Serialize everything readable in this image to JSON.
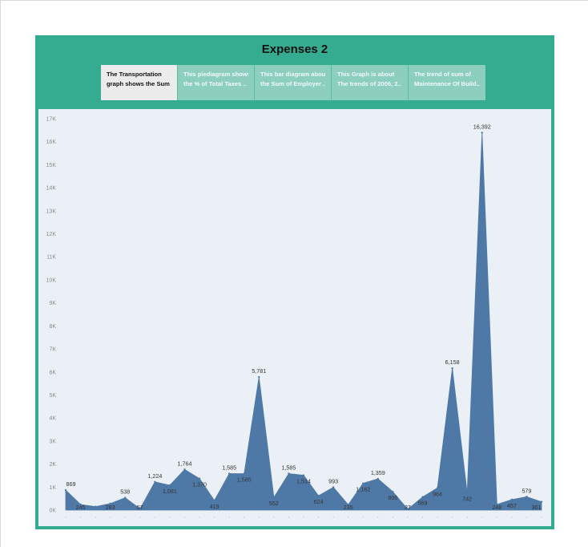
{
  "dashboard": {
    "title": "Expenses 2",
    "tabs": [
      {
        "line1": "The Transportation",
        "line2": "graph shows the Sum ..",
        "active": true
      },
      {
        "line1": "This piediagram shows",
        "line2": "the  % of Total Taxes ..",
        "active": false
      },
      {
        "line1": "This bar diagram about",
        "line2": "the Sum of Employer ..",
        "active": false
      },
      {
        "line1": "This Graph is about",
        "line2": "The trends of 2006, 2..",
        "active": false
      },
      {
        "line1": "The trend of sum of",
        "line2": "Maintenance Of Build..",
        "active": false
      }
    ]
  },
  "colors": {
    "area_fill": "#4e79a7",
    "plot_background": "#eaf0f5",
    "dashboard_background": "#35ab8f",
    "active_tab": "#ececec",
    "inactive_tab": "#8ccfbe"
  },
  "chart_data": {
    "type": "area",
    "title": "",
    "xlabel": "",
    "ylabel": "",
    "ylim": [
      0,
      17000
    ],
    "y_ticks": [
      0,
      1000,
      2000,
      3000,
      4000,
      5000,
      6000,
      7000,
      8000,
      9000,
      10000,
      11000,
      12000,
      13000,
      14000,
      15000,
      16000,
      17000
    ],
    "y_tick_labels": [
      "0K",
      "1K",
      "2K",
      "3K",
      "4K",
      "5K",
      "6K",
      "7K",
      "8K",
      "9K",
      "10K",
      "11K",
      "12K",
      "13K",
      "14K",
      "15K",
      "16K",
      "17K"
    ],
    "grid": false,
    "values": [
      869,
      245,
      150,
      283,
      538,
      57,
      1224,
      1081,
      1764,
      1370,
      419,
      1585,
      1585,
      5781,
      552,
      1585,
      1514,
      624,
      993,
      235,
      1162,
      1359,
      800,
      37,
      569,
      964,
      6158,
      742,
      16392,
      248,
      457,
      579,
      361
    ],
    "data_labels": [
      "869",
      "245",
      "",
      "283",
      "538",
      "57",
      "1,224",
      "1,081",
      "1,764",
      "1,370",
      "419",
      "1,585",
      "1,585",
      "5,781",
      "552",
      "1,585",
      "1,514",
      "624",
      "993",
      "235",
      "1,162",
      "1,359",
      "800",
      "37",
      "569",
      "964",
      "6,158",
      "742",
      "16,392",
      "248",
      "457",
      "579",
      "361"
    ]
  }
}
